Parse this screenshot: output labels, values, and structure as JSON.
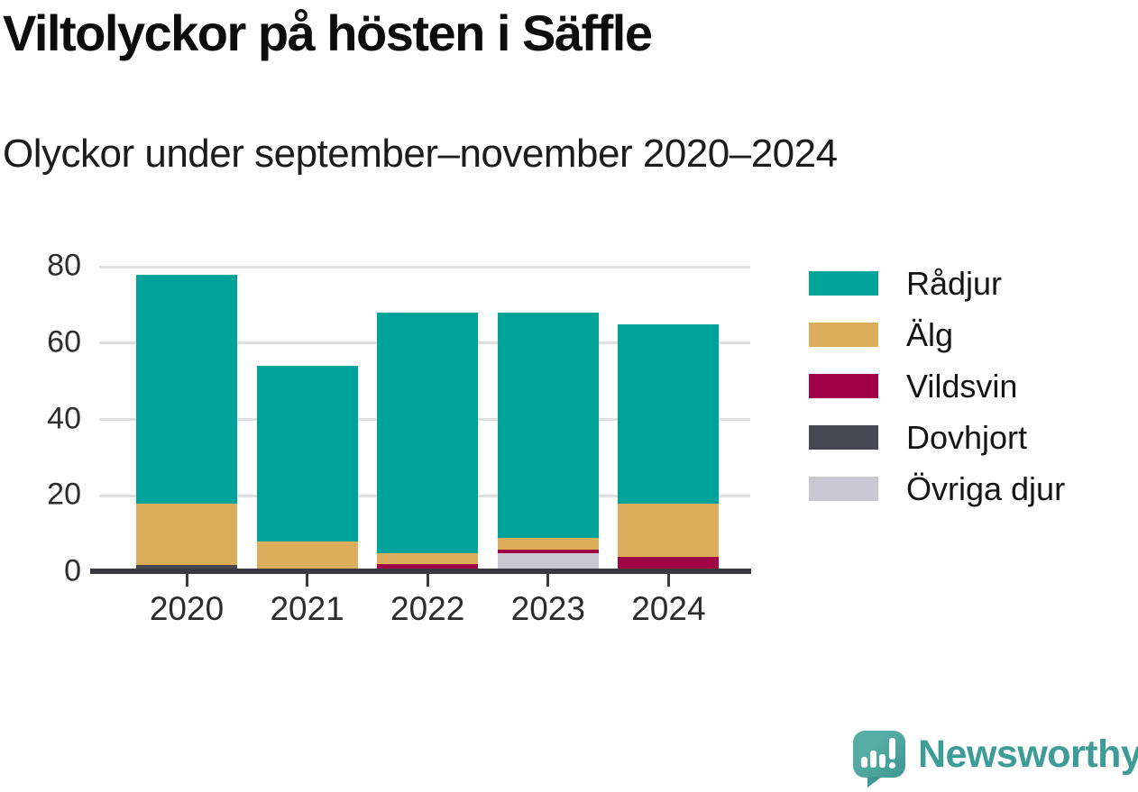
{
  "chart_data": {
    "type": "bar",
    "stacked": true,
    "title": "Viltolyckor på hösten i Säffle",
    "subtitle": "Olyckor under september–november 2020–2024",
    "xlabel": "",
    "ylabel": "",
    "categories": [
      "2020",
      "2021",
      "2022",
      "2023",
      "2024"
    ],
    "series": [
      {
        "name": "Rådjur",
        "color": "#00a399",
        "values": [
          60,
          46,
          63,
          59,
          47
        ]
      },
      {
        "name": "Älg",
        "color": "#dcae5c",
        "values": [
          16,
          7,
          3,
          3,
          14
        ]
      },
      {
        "name": "Vildsvin",
        "color": "#a00045",
        "values": [
          0,
          0,
          2,
          1,
          4
        ]
      },
      {
        "name": "Dovhjort",
        "color": "#484853",
        "values": [
          2,
          1,
          0,
          0,
          0
        ]
      },
      {
        "name": "Övriga djur",
        "color": "#c9c8d2",
        "values": [
          0,
          0,
          0,
          5,
          0
        ]
      }
    ],
    "totals": [
      78,
      54,
      68,
      68,
      65
    ],
    "yticks": [
      0,
      20,
      40,
      60,
      80
    ],
    "ylim": [
      0,
      80
    ],
    "grid": "horizontal",
    "legend_position": "right",
    "stack_order_top_to_bottom": [
      "Rådjur",
      "Älg",
      "Vildsvin",
      "Dovhjort",
      "Övriga djur"
    ]
  },
  "branding": {
    "logo_text": "Newsworthy",
    "logo_color": "#3d9c95",
    "mark_color": "#4ca7a1",
    "mark_icon": "bar-chart-exclamation-speech-bubble"
  }
}
